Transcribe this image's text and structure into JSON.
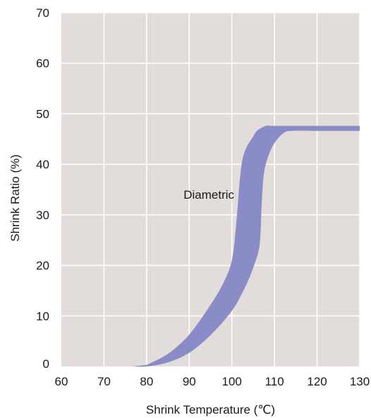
{
  "chart_data": {
    "type": "area",
    "title": "",
    "xlabel": "Shrink Temperature (℃)",
    "ylabel": "Shrink Ratio (%)",
    "xlim": [
      60,
      130
    ],
    "ylim": [
      0,
      70
    ],
    "xticks": [
      60,
      70,
      80,
      90,
      100,
      110,
      120,
      130
    ],
    "yticks": [
      0,
      10,
      20,
      30,
      40,
      50,
      60,
      70
    ],
    "grid": true,
    "legend": "none",
    "colors": {
      "plot_background": "#e2ddda",
      "grid": "#ffffff",
      "band_fill": "#8a8cc8"
    },
    "series": [
      {
        "upper": [
          [
            80,
            0.3
          ],
          [
            85,
            2.5
          ],
          [
            90,
            6.3
          ],
          [
            95,
            12.2
          ],
          [
            98,
            16.5
          ],
          [
            100,
            21.0
          ],
          [
            101,
            28.0
          ],
          [
            102,
            38.0
          ],
          [
            103,
            42.5
          ],
          [
            105,
            45.5
          ],
          [
            106,
            46.7
          ],
          [
            108,
            47.6
          ],
          [
            110,
            47.6
          ],
          [
            120,
            47.6
          ],
          [
            130,
            47.6
          ]
        ],
        "lower": [
          [
            76.5,
            0.0
          ],
          [
            80,
            0.0
          ],
          [
            85,
            0.8
          ],
          [
            90,
            2.7
          ],
          [
            95,
            6.2
          ],
          [
            100,
            11.0
          ],
          [
            103,
            15.5
          ],
          [
            105,
            19.5
          ],
          [
            106.5,
            24.0
          ],
          [
            107,
            32.0
          ],
          [
            107.5,
            38.0
          ],
          [
            108.5,
            41.5
          ],
          [
            110,
            44.2
          ],
          [
            112,
            46.1
          ],
          [
            114,
            46.6
          ],
          [
            120,
            46.6
          ],
          [
            130,
            46.6
          ]
        ]
      }
    ],
    "annotations": [
      {
        "text": "Diametric",
        "x": 89,
        "y": 34
      }
    ]
  }
}
